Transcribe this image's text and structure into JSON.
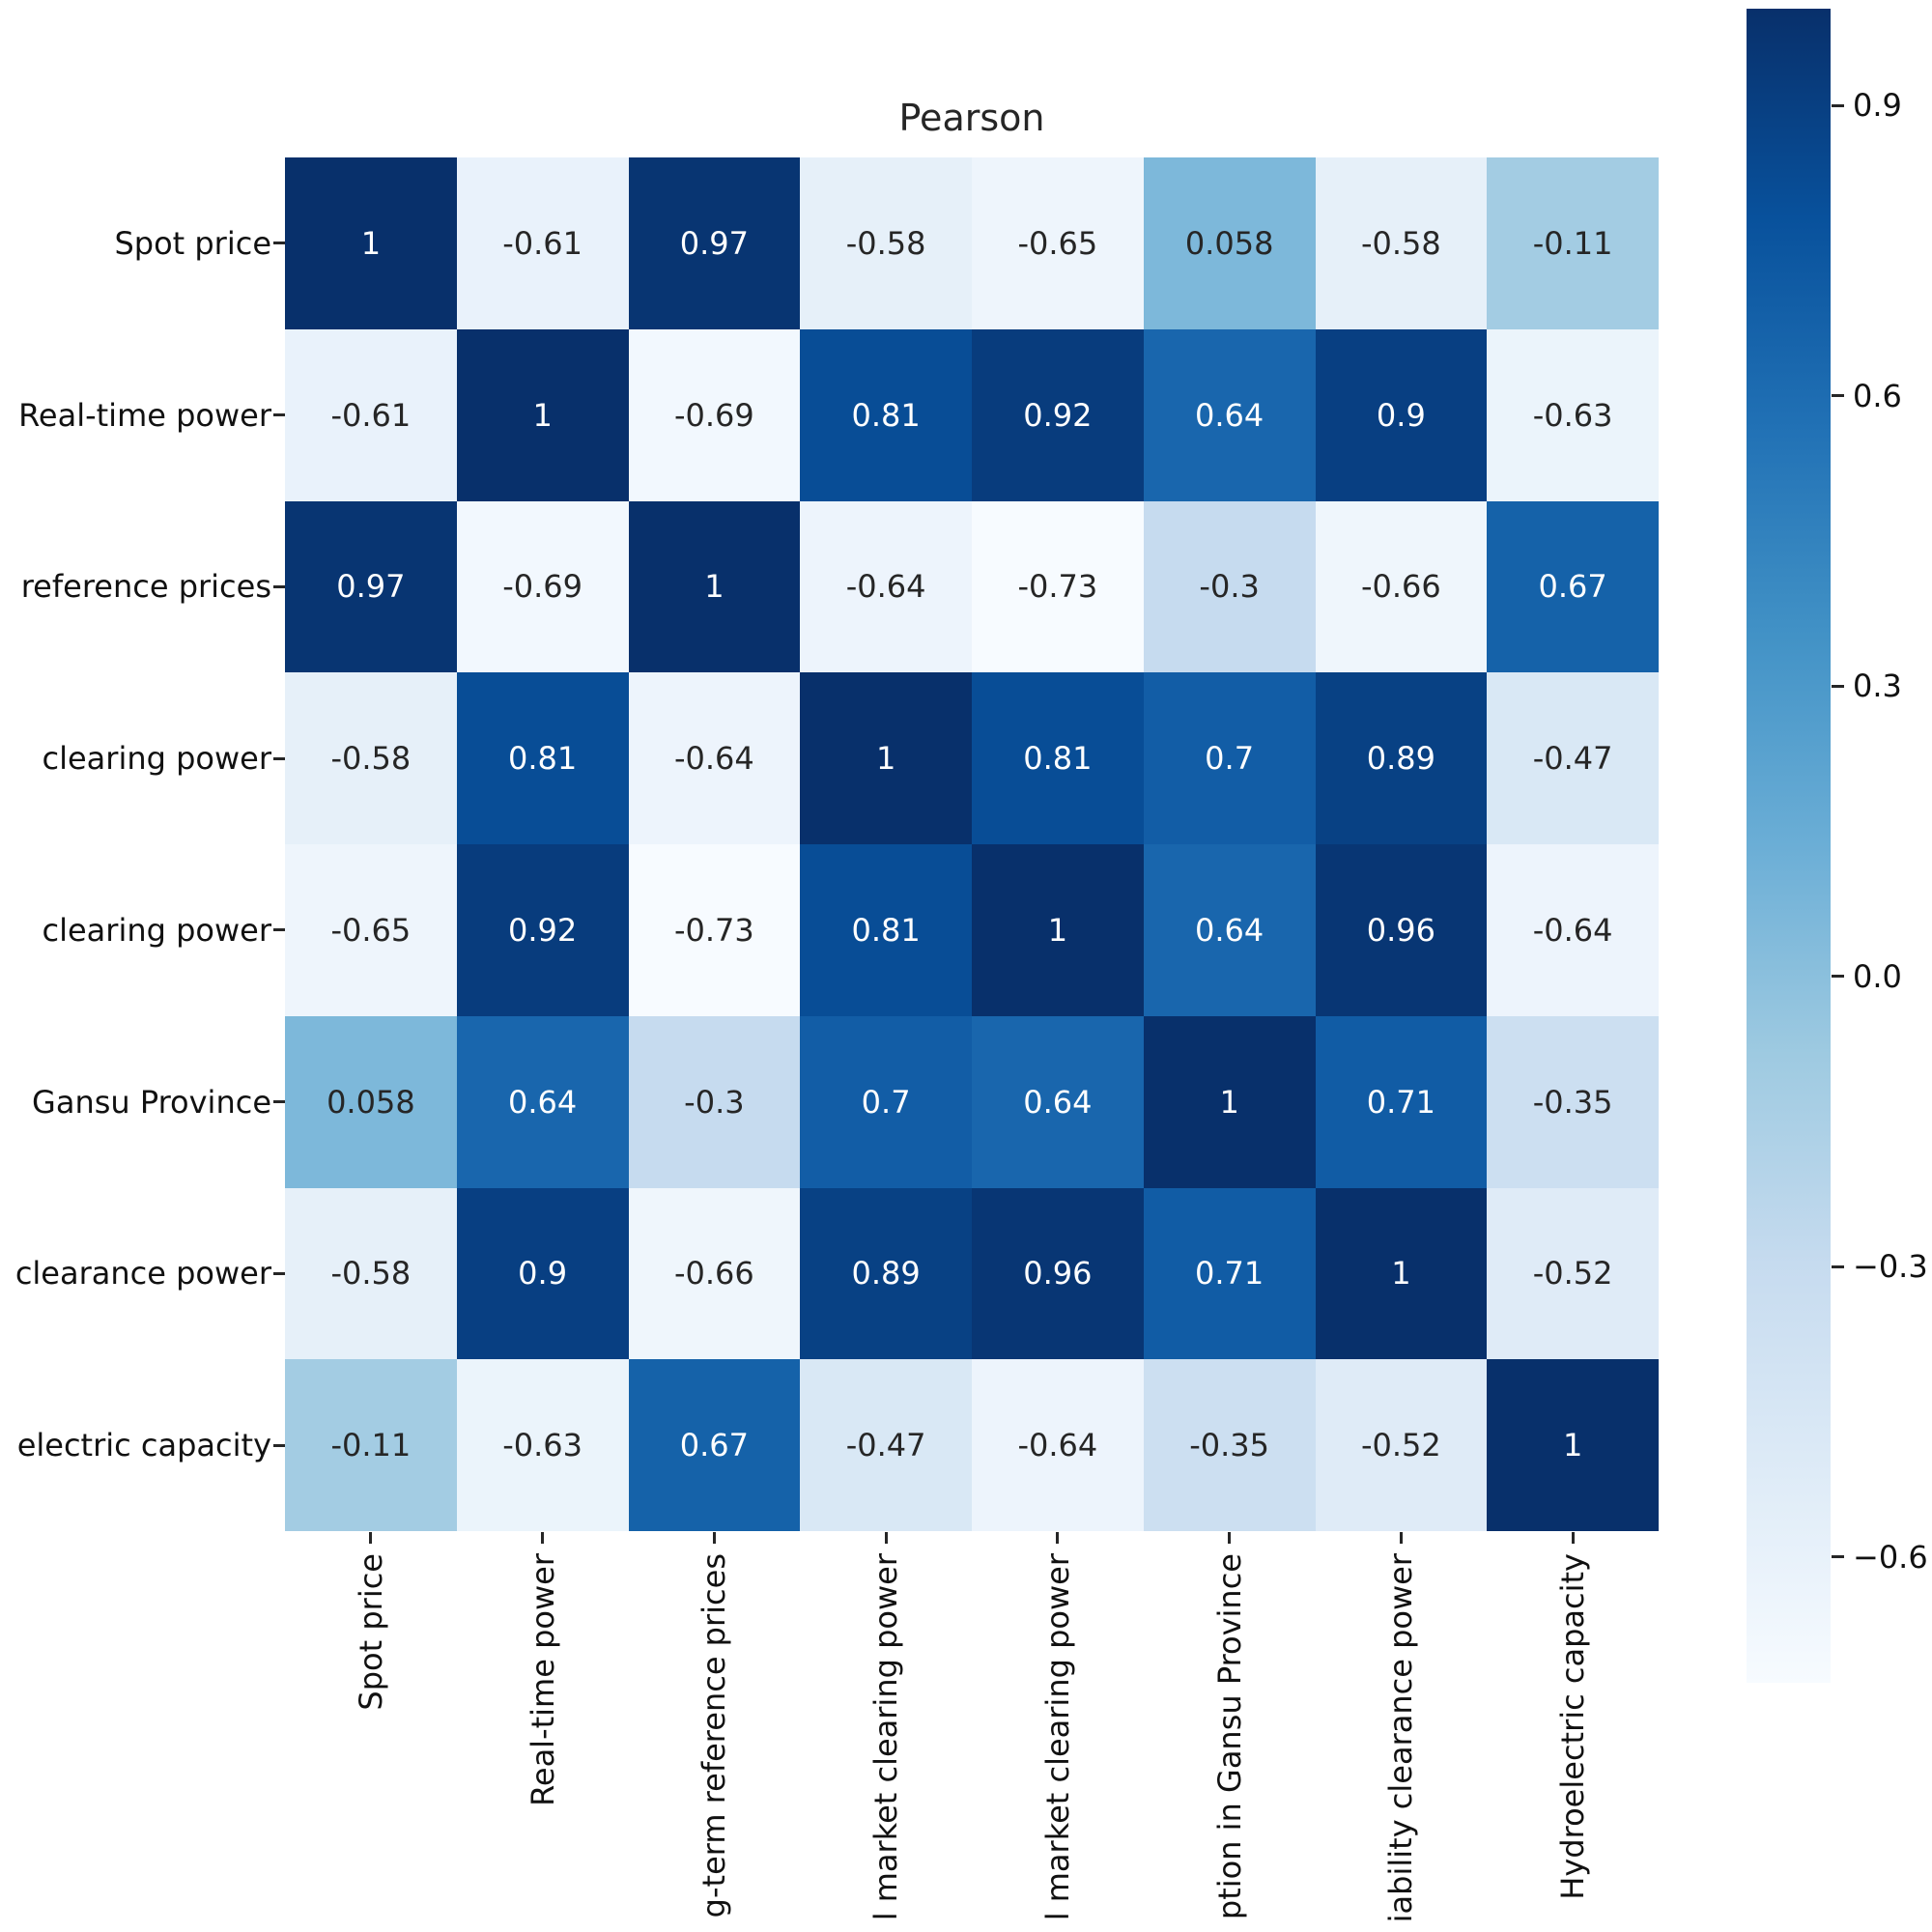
{
  "chart_data": {
    "type": "heatmap",
    "title": "Pearson",
    "colormap": "Blues",
    "vmin": -0.73,
    "vmax": 1.0,
    "row_labels": [
      "Spot price",
      "Real-time power",
      "reference prices",
      "clearing power",
      "clearing power",
      "Gansu Province",
      "clearance power",
      "electric capacity"
    ],
    "column_labels": [
      "Spot price",
      "Real-time power",
      "g-term reference prices",
      "l market clearing power",
      "l market clearing power",
      "ption in Gansu Province",
      "iability clearance power",
      "Hydroelectric capacity"
    ],
    "matrix": [
      [
        1,
        -0.61,
        0.97,
        -0.58,
        -0.65,
        0.058,
        -0.58,
        -0.11
      ],
      [
        -0.61,
        1,
        -0.69,
        0.81,
        0.92,
        0.64,
        0.9,
        -0.63
      ],
      [
        0.97,
        -0.69,
        1,
        -0.64,
        -0.73,
        -0.3,
        -0.66,
        0.67
      ],
      [
        -0.58,
        0.81,
        -0.64,
        1,
        0.81,
        0.7,
        0.89,
        -0.47
      ],
      [
        -0.65,
        0.92,
        -0.73,
        0.81,
        1,
        0.64,
        0.96,
        -0.64
      ],
      [
        0.058,
        0.64,
        -0.3,
        0.7,
        0.64,
        1,
        0.71,
        -0.35
      ],
      [
        -0.58,
        0.9,
        -0.66,
        0.89,
        0.96,
        0.71,
        1,
        -0.52
      ],
      [
        -0.11,
        -0.63,
        0.67,
        -0.47,
        -0.64,
        -0.35,
        -0.52,
        1
      ]
    ],
    "colorbar": {
      "ticks": [
        {
          "value": 0.9,
          "label": "0.9"
        },
        {
          "value": 0.6,
          "label": "0.6"
        },
        {
          "value": 0.3,
          "label": "0.3"
        },
        {
          "value": 0.0,
          "label": "0.0"
        },
        {
          "value": -0.3,
          "label": "−0.3"
        },
        {
          "value": -0.6,
          "label": "−0.6"
        }
      ],
      "position": "right"
    },
    "colors": {
      "blues_anchors": [
        "#f7fbff",
        "#deebf7",
        "#c6dbef",
        "#9ecae1",
        "#6baed6",
        "#4292c6",
        "#2171b5",
        "#08519c",
        "#08306b"
      ],
      "annotation_dark": "#262626",
      "annotation_light": "#ffffff",
      "label_color": "#111111"
    },
    "legend_position": "right colorbar",
    "grid": false
  }
}
